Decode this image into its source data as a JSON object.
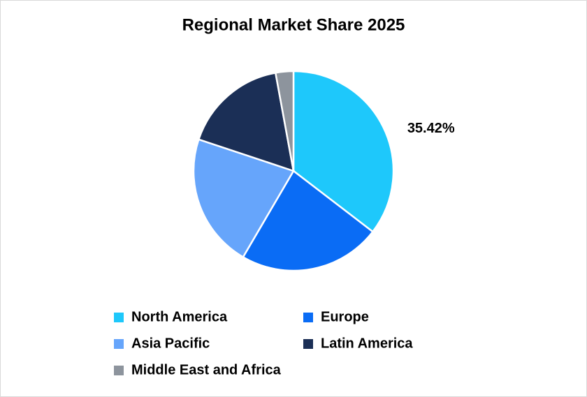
{
  "chart_data": {
    "type": "pie",
    "title": "Regional Market Share 2025",
    "categories": [
      "North America",
      "Europe",
      "Asia Pacific",
      "Latin America",
      "Middle East and Africa"
    ],
    "values": [
      35.42,
      23.0,
      21.7,
      17.0,
      2.88
    ],
    "value_labels": [
      "35.42%",
      null,
      null,
      null,
      null
    ],
    "colors": [
      "#1ec8fb",
      "#0a6cf5",
      "#66a5fb",
      "#1b2f56",
      "#8d949d"
    ]
  }
}
